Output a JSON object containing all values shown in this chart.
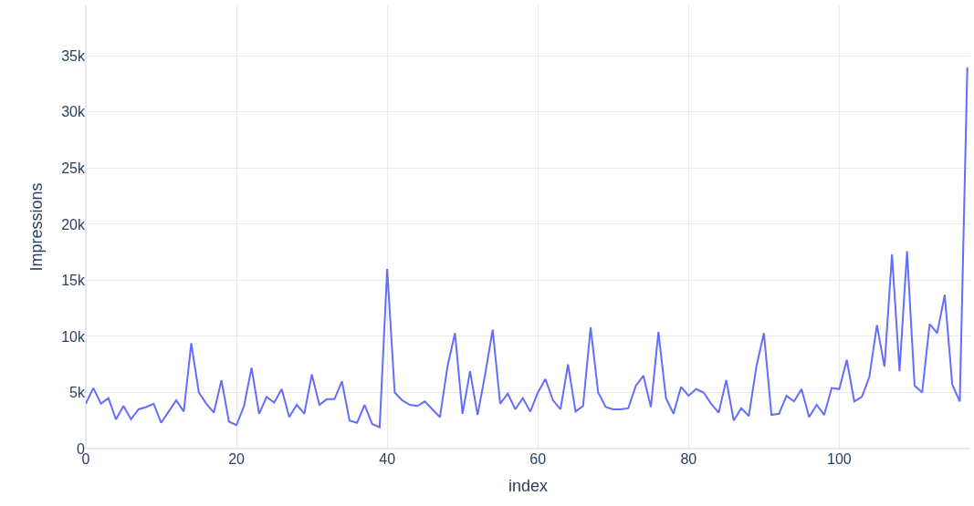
{
  "chart_data": {
    "type": "line",
    "xlabel": "index",
    "ylabel": "Impressions",
    "x": [
      0,
      1,
      2,
      3,
      4,
      5,
      6,
      7,
      8,
      9,
      10,
      11,
      12,
      13,
      14,
      15,
      16,
      17,
      18,
      19,
      20,
      21,
      22,
      23,
      24,
      25,
      26,
      27,
      28,
      29,
      30,
      31,
      32,
      33,
      34,
      35,
      36,
      37,
      38,
      39,
      40,
      41,
      42,
      43,
      44,
      45,
      46,
      47,
      48,
      49,
      50,
      51,
      52,
      53,
      54,
      55,
      56,
      57,
      58,
      59,
      60,
      61,
      62,
      63,
      64,
      65,
      66,
      67,
      68,
      69,
      70,
      71,
      72,
      73,
      74,
      75,
      76,
      77,
      78,
      79,
      80,
      81,
      82,
      83,
      84,
      85,
      86,
      87,
      88,
      89,
      90,
      91,
      92,
      93,
      94,
      95,
      96,
      97,
      98,
      99,
      100,
      101,
      102,
      103,
      104,
      105,
      106,
      107,
      108,
      109,
      110,
      111,
      112,
      113,
      114,
      115,
      116,
      117
    ],
    "series": [
      {
        "color": "#636efa",
        "values": [
          4000,
          5400,
          4000,
          4500,
          2600,
          3800,
          2600,
          3500,
          3700,
          4000,
          2300,
          3300,
          4300,
          3300,
          9400,
          5000,
          4000,
          3200,
          6100,
          2400,
          2100,
          3800,
          7200,
          3100,
          4600,
          4100,
          5300,
          2800,
          3900,
          3100,
          6600,
          3900,
          4400,
          4400,
          6000,
          2500,
          2300,
          3900,
          2200,
          1900,
          16000,
          5000,
          4300,
          3900,
          3800,
          4200,
          3500,
          2800,
          7300,
          10300,
          3100,
          6900,
          3000,
          6600,
          10600,
          4000,
          4900,
          3500,
          4500,
          3300,
          5000,
          6200,
          4300,
          3500,
          7500,
          3300,
          3800,
          10800,
          5000,
          3700,
          3500,
          3500,
          3600,
          5600,
          6500,
          3700,
          10400,
          4500,
          3100,
          5500,
          4700,
          5300,
          5000,
          4000,
          3200,
          6100,
          2500,
          3600,
          2900,
          7300,
          10300,
          3000,
          3100,
          4700,
          4200,
          5300,
          2800,
          3900,
          3000,
          5400,
          5300,
          7900,
          4200,
          4600,
          6400,
          11000,
          7300,
          17300,
          6900,
          17600,
          5600,
          5000,
          11100,
          10300,
          13700,
          5700,
          4200,
          34000
        ]
      }
    ],
    "xlim": [
      0,
      117.4
    ],
    "xticks": [
      0,
      20,
      40,
      60,
      80,
      100
    ],
    "ylim": [
      0,
      39500
    ],
    "yticks": [
      0,
      {
        "value": 5000,
        "label": "5k"
      },
      {
        "value": 10000,
        "label": "10k"
      },
      {
        "value": 15000,
        "label": "15k"
      },
      {
        "value": 20000,
        "label": "20k"
      },
      {
        "value": 25000,
        "label": "25k"
      },
      {
        "value": 30000,
        "label": "30k"
      },
      {
        "value": 35000,
        "label": "35k"
      }
    ],
    "grid": true,
    "marker": "none",
    "line_style": "solid"
  }
}
